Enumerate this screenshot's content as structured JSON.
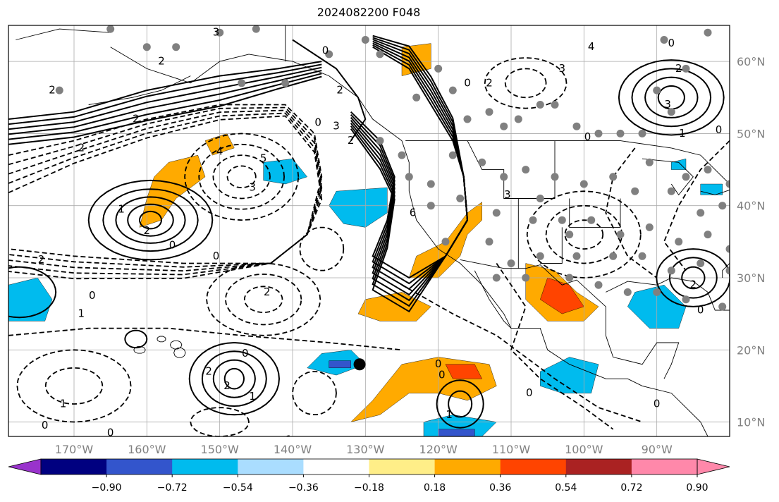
{
  "title": "2024082200 F048",
  "lon_ticks": [
    "170°W",
    "160°W",
    "150°W",
    "140°W",
    "130°W",
    "120°W",
    "110°W",
    "100°W",
    "90°W"
  ],
  "lat_ticks": [
    "60°N",
    "50°N",
    "40°N",
    "30°N",
    "20°N",
    "10°N"
  ],
  "colorbar": {
    "tick_labels": [
      "−0.90",
      "−0.72",
      "−0.54",
      "−0.36",
      "−0.18",
      "0.18",
      "0.36",
      "0.54",
      "0.72",
      "0.90"
    ],
    "colors": [
      "#9933cc",
      "#000080",
      "#3355cc",
      "#00bbee",
      "#aaddff",
      "#ffffff",
      "#ffee88",
      "#ffaa00",
      "#ff4400",
      "#aa2222",
      "#ff88aa"
    ]
  },
  "fill_colors": {
    "light_blue": "#aaddff",
    "cyan": "#00bbee",
    "blue": "#3355cc",
    "orange": "#ffaa00",
    "red_orange": "#ff4400"
  },
  "contour_labels": [
    {
      "t": "3",
      "lon": -150.5,
      "lat": 64.0
    },
    {
      "t": "2",
      "lon": -173.0,
      "lat": 56.0
    },
    {
      "t": "2",
      "lon": -158.0,
      "lat": 60.0
    },
    {
      "t": "2",
      "lon": -161.5,
      "lat": 52.0
    },
    {
      "t": "2",
      "lon": -169.0,
      "lat": 48.0
    },
    {
      "t": "4",
      "lon": -150.0,
      "lat": 47.5
    },
    {
      "t": "5",
      "lon": -144.0,
      "lat": 46.5
    },
    {
      "t": "3",
      "lon": -145.5,
      "lat": 42.5
    },
    {
      "t": "1",
      "lon": -163.5,
      "lat": 39.5
    },
    {
      "t": "2",
      "lon": -160.0,
      "lat": 36.5
    },
    {
      "t": "0",
      "lon": -156.5,
      "lat": 34.5
    },
    {
      "t": "0",
      "lon": -150.5,
      "lat": 33.0
    },
    {
      "t": "2",
      "lon": -174.5,
      "lat": 32.5
    },
    {
      "t": "0",
      "lon": -167.5,
      "lat": 27.5
    },
    {
      "t": "1",
      "lon": -169.0,
      "lat": 25.0
    },
    {
      "t": "2",
      "lon": -143.5,
      "lat": 28.0
    },
    {
      "t": "0",
      "lon": -146.5,
      "lat": 19.5
    },
    {
      "t": "2",
      "lon": -151.5,
      "lat": 17.0
    },
    {
      "t": "2",
      "lon": -149.0,
      "lat": 15.0
    },
    {
      "t": "1",
      "lon": -145.5,
      "lat": 13.5
    },
    {
      "t": "1",
      "lon": -171.5,
      "lat": 12.5
    },
    {
      "t": "0",
      "lon": -174.0,
      "lat": 9.5
    },
    {
      "t": "0",
      "lon": -165.0,
      "lat": 8.5
    },
    {
      "t": "1",
      "lon": -140.5,
      "lat": 7.5
    },
    {
      "t": "0",
      "lon": -135.5,
      "lat": 61.5
    },
    {
      "t": "2",
      "lon": -133.5,
      "lat": 56.0
    },
    {
      "t": "0",
      "lon": -136.5,
      "lat": 51.5
    },
    {
      "t": "3",
      "lon": -134.0,
      "lat": 51.0
    },
    {
      "t": "2",
      "lon": -132.0,
      "lat": 49.0
    },
    {
      "t": "6",
      "lon": -123.5,
      "lat": 39.0
    },
    {
      "t": "0",
      "lon": -120.0,
      "lat": 18.0
    },
    {
      "t": "0",
      "lon": -119.5,
      "lat": 16.5
    },
    {
      "t": "1",
      "lon": -118.5,
      "lat": 11.0
    },
    {
      "t": "0",
      "lon": -116.0,
      "lat": 57.0
    },
    {
      "t": "2",
      "lon": -113.0,
      "lat": 57.0
    },
    {
      "t": "3",
      "lon": -103.0,
      "lat": 59.0
    },
    {
      "t": "4",
      "lon": -99.0,
      "lat": 62.0
    },
    {
      "t": "0",
      "lon": -99.5,
      "lat": 49.5
    },
    {
      "t": "0",
      "lon": -88.0,
      "lat": 62.5
    },
    {
      "t": "2",
      "lon": -87.0,
      "lat": 59.0
    },
    {
      "t": "3",
      "lon": -88.5,
      "lat": 54.0
    },
    {
      "t": "1",
      "lon": -86.5,
      "lat": 50.0
    },
    {
      "t": "0",
      "lon": -81.5,
      "lat": 50.5
    },
    {
      "t": "3",
      "lon": -110.5,
      "lat": 41.5
    },
    {
      "t": "2",
      "lon": -85.0,
      "lat": 29.0
    },
    {
      "t": "0",
      "lon": -84.0,
      "lat": 25.5
    },
    {
      "t": "0",
      "lon": -90.0,
      "lat": 12.5
    },
    {
      "t": "0",
      "lon": -107.5,
      "lat": 14.0
    }
  ]
}
